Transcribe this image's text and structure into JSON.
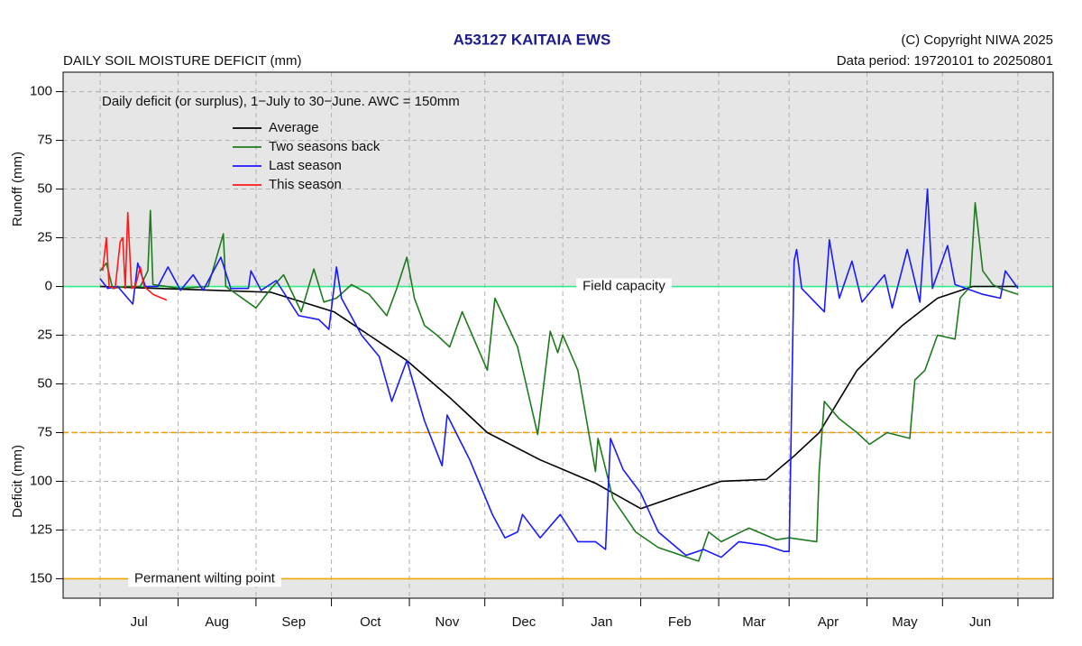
{
  "chart_data": {
    "type": "line",
    "title": "A53127  KAITAIA EWS",
    "subtitle": "DAILY SOIL MOISTURE DEFICIT (mm)",
    "copyright": "(C) Copyright NIWA  2025",
    "data_period": "Data period:  19720101  to  20250801",
    "annotation": "Daily deficit (or surplus), 1−July to 30−June.  AWC = 150mm",
    "y_labels": [
      {
        "value": 50,
        "label": "Runoff (mm)"
      },
      {
        "value": -100,
        "label": "Deficit (mm)"
      }
    ],
    "xlim": [
      -14.7,
      379
    ],
    "ylim": [
      -160,
      110
    ],
    "xgrid": [
      0,
      31,
      62,
      92,
      123,
      153,
      184,
      215,
      246,
      274,
      305,
      335,
      365
    ],
    "xticks": [
      {
        "value": 15.5,
        "label": "Jul"
      },
      {
        "value": 46.5,
        "label": "Aug"
      },
      {
        "value": 77,
        "label": "Sep"
      },
      {
        "value": 107.5,
        "label": "Oct"
      },
      {
        "value": 138,
        "label": "Nov"
      },
      {
        "value": 168.5,
        "label": "Dec"
      },
      {
        "value": 199.5,
        "label": "Jan"
      },
      {
        "value": 230.5,
        "label": "Feb"
      },
      {
        "value": 260,
        "label": "Mar"
      },
      {
        "value": 289.5,
        "label": "Apr"
      },
      {
        "value": 320,
        "label": "May"
      },
      {
        "value": 350,
        "label": "Jun"
      }
    ],
    "yticks": [
      100,
      75,
      50,
      25,
      0,
      {
        "value": -25,
        "label": "25"
      },
      {
        "value": -50,
        "label": "50"
      },
      {
        "value": -75,
        "label": "75"
      },
      {
        "value": -100,
        "label": "100"
      },
      {
        "value": -125,
        "label": "125"
      },
      {
        "value": -150,
        "label": "150"
      }
    ],
    "grid": true,
    "legend": "top-left",
    "reference_lines": [
      {
        "value": 0,
        "label": "Field capacity",
        "color": "#33ee88",
        "style": "solid"
      },
      {
        "value": -75,
        "color": "#f0a000",
        "style": "dashed"
      },
      {
        "value": -150,
        "label": "Permanent wilting point",
        "color": "#f5a800",
        "style": "solid"
      }
    ],
    "series": [
      {
        "name": "Average",
        "color": "#000000",
        "x": [
          0,
          46,
          68,
          93,
          107,
          122,
          139,
          154,
          175,
          197,
          215,
          233,
          247,
          265,
          276,
          286,
          301,
          319,
          333,
          347,
          365
        ],
        "values": [
          0,
          -2,
          -3,
          -13,
          -25,
          -38,
          -57,
          -75,
          -89,
          -101,
          -114,
          -106,
          -100,
          -99,
          -87,
          -75,
          -43,
          -20,
          -6,
          0,
          0
        ]
      },
      {
        "name": "Two seasons back",
        "color": "#1e7a1e",
        "x": [
          0,
          2.5,
          5,
          10,
          16,
          19,
          20,
          21,
          32,
          43,
          49,
          50,
          62,
          68,
          73,
          80,
          85,
          89,
          94,
          100,
          107,
          114,
          118,
          122,
          125,
          129,
          134,
          139,
          144,
          154,
          157,
          166,
          174,
          179,
          182,
          184,
          190,
          197,
          198,
          204,
          213,
          222,
          238,
          242,
          247,
          258,
          269,
          274,
          285,
          286,
          288,
          294,
          301,
          306,
          313,
          322,
          324,
          328,
          333,
          340,
          342,
          346,
          348,
          351,
          355,
          358,
          365
        ],
        "values": [
          8,
          12,
          -1,
          0,
          0,
          8,
          39,
          1,
          -1,
          0,
          27,
          0,
          -11,
          -1,
          6,
          -13,
          9,
          -8,
          -6,
          1,
          -4,
          -15,
          -1,
          15,
          -6,
          -20,
          -25,
          -31,
          -13,
          -43,
          -6,
          -31,
          -76,
          -23,
          -34,
          -25,
          -43,
          -95,
          -78,
          -109,
          -126,
          -134,
          -141,
          -126,
          -131,
          -124,
          -130,
          -129,
          -131,
          -94,
          -59,
          -68,
          -75,
          -81,
          -75,
          -78,
          -48,
          -43,
          -25,
          -27,
          -6,
          0,
          43,
          8,
          1,
          -1,
          -4
        ]
      },
      {
        "name": "Last season",
        "color": "#1a1aff",
        "x": [
          0,
          3,
          7,
          13,
          15,
          18,
          23,
          27,
          32,
          37,
          41,
          48,
          52,
          59,
          60,
          64,
          70,
          79,
          87,
          91,
          94,
          96,
          104,
          111,
          116,
          122,
          129,
          136,
          138,
          147,
          156,
          161,
          166,
          168,
          175,
          183,
          190,
          197,
          201,
          203,
          208,
          215,
          222,
          233,
          240,
          247,
          254,
          265,
          272,
          274,
          276,
          277,
          279,
          288,
          290,
          294,
          299,
          303,
          312,
          315,
          321,
          326,
          329,
          331,
          337,
          340,
          351,
          358,
          360,
          365
        ],
        "values": [
          4,
          -1,
          0,
          -9,
          12,
          0,
          0,
          10,
          -2,
          6,
          -2,
          15,
          -1,
          -1,
          8,
          -2,
          3,
          -15,
          -17,
          -22,
          10,
          -6,
          -25,
          -36,
          -59,
          -38,
          -69,
          -92,
          -66,
          -89,
          -117,
          -129,
          -126,
          -117,
          -129,
          -117,
          -131,
          -131,
          -135,
          -78,
          -94,
          -106,
          -126,
          -138,
          -135,
          -139,
          -131,
          -133,
          -136,
          -136,
          13,
          19,
          -1,
          -13,
          24,
          -6,
          13,
          -8,
          6,
          -11,
          19,
          -8,
          50,
          -1,
          21,
          1,
          -4,
          -6,
          8,
          -1
        ]
      },
      {
        "name": "This season",
        "color": "#ff1a1a",
        "x": [
          1,
          2.5,
          3.6,
          6,
          8,
          9,
          10,
          11,
          12.5,
          14,
          16,
          17.5,
          21,
          26.5
        ],
        "values": [
          8,
          25,
          0,
          -1,
          23,
          25,
          -1,
          38,
          -1,
          0,
          10,
          0,
          -4,
          -7
        ]
      }
    ]
  }
}
